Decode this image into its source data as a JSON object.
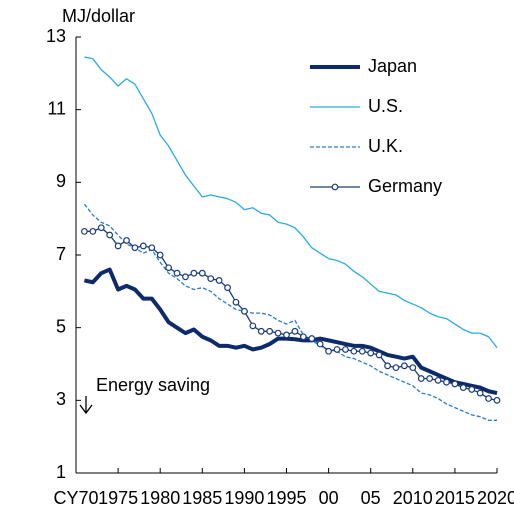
{
  "chart_data": {
    "type": "line",
    "y_label": "MJ/dollar",
    "annotation": "Energy saving",
    "x": [
      1971,
      1972,
      1973,
      1974,
      1975,
      1976,
      1977,
      1978,
      1979,
      1980,
      1981,
      1982,
      1983,
      1984,
      1985,
      1986,
      1987,
      1988,
      1989,
      1990,
      1991,
      1992,
      1993,
      1994,
      1995,
      1996,
      1997,
      1998,
      1999,
      2000,
      2001,
      2002,
      2003,
      2004,
      2005,
      2006,
      2007,
      2008,
      2009,
      2010,
      2011,
      2012,
      2013,
      2014,
      2015,
      2016,
      2017,
      2018,
      2019,
      2020
    ],
    "xlim": [
      1970,
      2020
    ],
    "xticks": [
      {
        "value": 1970,
        "label": "CY70"
      },
      1975,
      1980,
      1985,
      1990,
      1995,
      {
        "value": 2000,
        "label": "00"
      },
      {
        "value": 2005,
        "label": "05"
      },
      2010,
      2015,
      2020
    ],
    "ylim": [
      1,
      13
    ],
    "yticks": [
      1,
      3,
      5,
      7,
      9,
      11,
      13
    ],
    "legend": "top-right",
    "series": [
      {
        "name": "Japan",
        "color": "#0d2a6b",
        "width": 4,
        "style": "solid",
        "marker": "none",
        "values": [
          6.3,
          6.25,
          6.5,
          6.6,
          6.05,
          6.15,
          6.05,
          5.8,
          5.8,
          5.5,
          5.15,
          5.0,
          4.85,
          4.95,
          4.75,
          4.65,
          4.5,
          4.5,
          4.45,
          4.5,
          4.4,
          4.45,
          4.55,
          4.7,
          4.7,
          4.68,
          4.65,
          4.65,
          4.7,
          4.65,
          4.6,
          4.55,
          4.5,
          4.5,
          4.45,
          4.35,
          4.25,
          4.2,
          4.15,
          4.2,
          3.9,
          3.8,
          3.7,
          3.6,
          3.5,
          3.45,
          3.4,
          3.35,
          3.25,
          3.2
        ]
      },
      {
        "name": "U.S.",
        "color": "#29abe2",
        "width": 1.3,
        "style": "solid",
        "marker": "none",
        "values": [
          12.45,
          12.4,
          12.1,
          11.9,
          11.65,
          11.85,
          11.7,
          11.3,
          10.9,
          10.3,
          10.0,
          9.6,
          9.2,
          8.9,
          8.6,
          8.65,
          8.6,
          8.55,
          8.45,
          8.25,
          8.3,
          8.15,
          8.1,
          7.9,
          7.85,
          7.75,
          7.5,
          7.2,
          7.05,
          6.9,
          6.85,
          6.75,
          6.55,
          6.4,
          6.2,
          6.0,
          5.95,
          5.9,
          5.75,
          5.65,
          5.55,
          5.4,
          5.3,
          5.25,
          5.1,
          4.95,
          4.85,
          4.85,
          4.75,
          4.45
        ]
      },
      {
        "name": "U.K.",
        "color": "#2a7cc7",
        "width": 1.3,
        "style": "dashed",
        "marker": "none",
        "values": [
          8.4,
          8.1,
          7.9,
          7.8,
          7.55,
          7.3,
          7.2,
          7.05,
          7.15,
          6.8,
          6.5,
          6.35,
          6.15,
          6.05,
          6.1,
          6.0,
          5.8,
          5.65,
          5.5,
          5.45,
          5.4,
          5.4,
          5.35,
          5.2,
          5.1,
          5.2,
          4.8,
          4.65,
          4.5,
          4.4,
          4.35,
          4.2,
          4.15,
          4.05,
          3.95,
          3.8,
          3.7,
          3.6,
          3.5,
          3.4,
          3.2,
          3.15,
          3.05,
          2.9,
          2.8,
          2.7,
          2.6,
          2.55,
          2.45,
          2.45
        ]
      },
      {
        "name": "Germany",
        "color": "#1a3a7a",
        "width": 1.3,
        "style": "solid",
        "marker": "circle",
        "values": [
          7.65,
          7.65,
          7.75,
          7.55,
          7.25,
          7.4,
          7.2,
          7.25,
          7.2,
          7.0,
          6.65,
          6.5,
          6.4,
          6.5,
          6.5,
          6.35,
          6.3,
          6.1,
          5.7,
          5.45,
          5.05,
          4.9,
          4.9,
          4.85,
          4.8,
          4.9,
          4.75,
          4.7,
          4.55,
          4.35,
          4.4,
          4.4,
          4.35,
          4.35,
          4.3,
          4.25,
          3.95,
          3.9,
          3.95,
          3.9,
          3.6,
          3.6,
          3.55,
          3.5,
          3.45,
          3.35,
          3.3,
          3.2,
          3.05,
          3.0
        ]
      }
    ]
  }
}
